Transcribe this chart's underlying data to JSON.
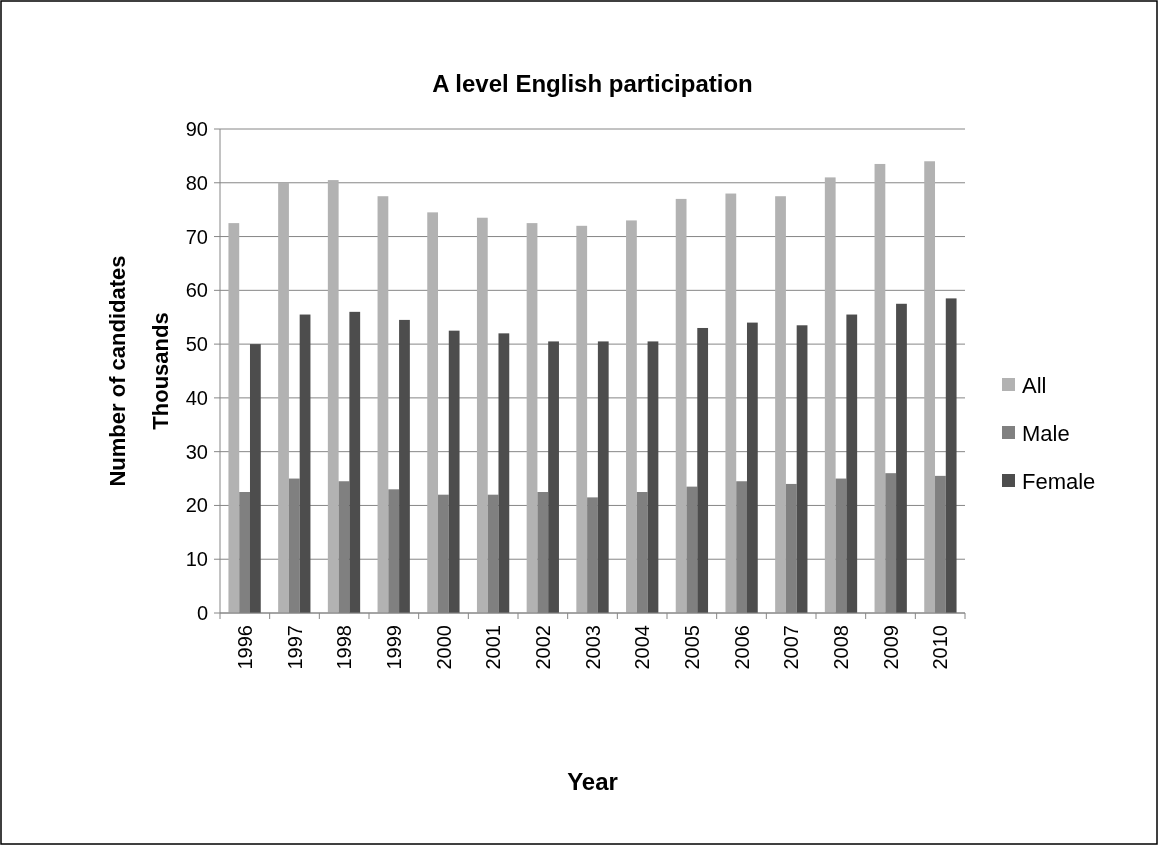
{
  "chart_data": {
    "type": "bar",
    "title": "A level English participation",
    "xlabel": "Year",
    "ylabel": "Number of candidates",
    "annotations": [
      "Thousands"
    ],
    "categories": [
      "1996",
      "1997",
      "1998",
      "1999",
      "2000",
      "2001",
      "2002",
      "2003",
      "2004",
      "2005",
      "2006",
      "2007",
      "2008",
      "2009",
      "2010"
    ],
    "series": [
      {
        "name": "All",
        "color": "#b2b2b2",
        "values": [
          72.5,
          80,
          80.5,
          77.5,
          74.5,
          73.5,
          72.5,
          72,
          73,
          77,
          78,
          77.5,
          81,
          83.5,
          84
        ]
      },
      {
        "name": "Male",
        "color": "#808080",
        "values": [
          22.5,
          25,
          24.5,
          23,
          22,
          22,
          22.5,
          21.5,
          22.5,
          23.5,
          24.5,
          24,
          25,
          26,
          25.5
        ]
      },
      {
        "name": "Female",
        "color": "#4d4d4d",
        "values": [
          50,
          55.5,
          56,
          54.5,
          52.5,
          52,
          50.5,
          50.5,
          50.5,
          53,
          54,
          53.5,
          55.5,
          57.5,
          58.5
        ]
      }
    ],
    "ylim": [
      0,
      90
    ],
    "yticks": [
      0,
      10,
      20,
      30,
      40,
      50,
      60,
      70,
      80,
      90
    ],
    "grid": "y",
    "legend": "right"
  }
}
